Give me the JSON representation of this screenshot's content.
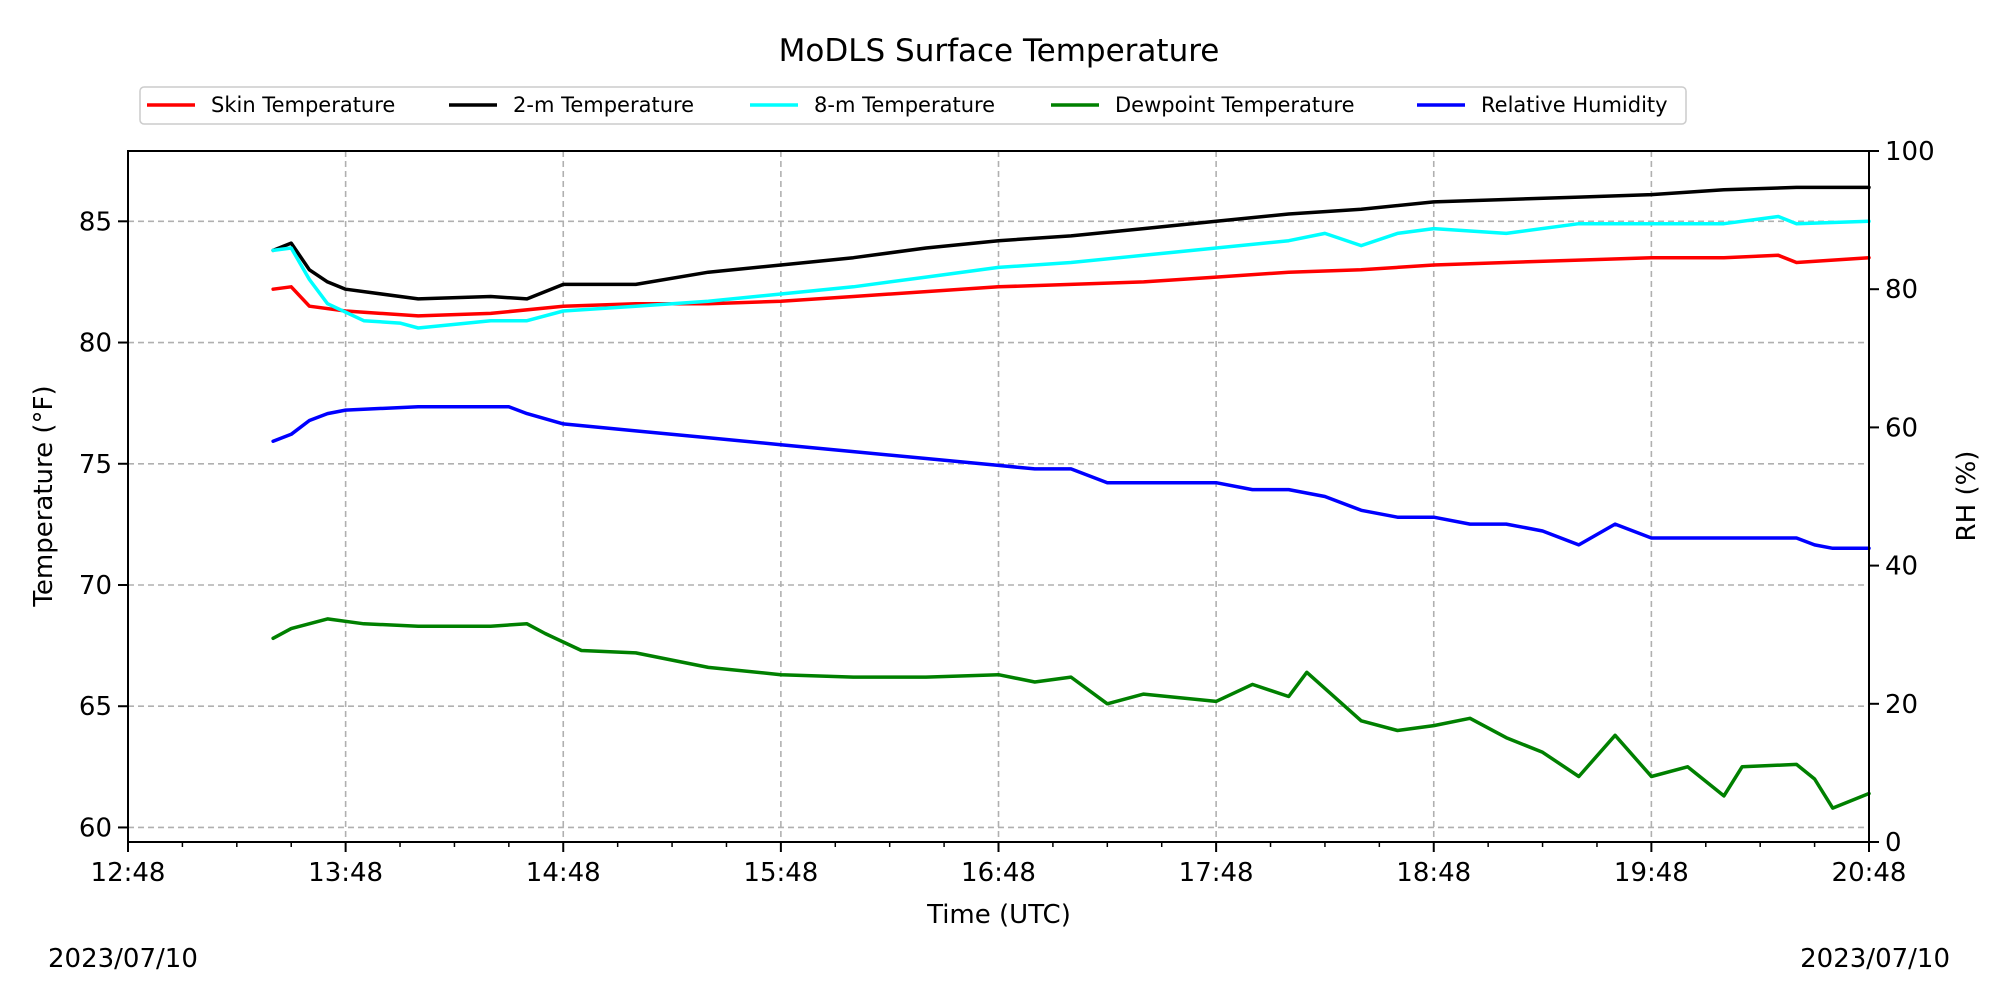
{
  "chart_data": {
    "type": "line",
    "title": "MoDLS Surface Temperature",
    "xlabel": "Time (UTC)",
    "ylabel": "Temperature ($^\\circ$F)",
    "ylabel_display": "Temperature (°F)",
    "y2label": "RH (%)",
    "xlim": [
      "12:48",
      "20:48"
    ],
    "xticks": [
      "12:48",
      "13:48",
      "14:48",
      "15:48",
      "16:48",
      "17:48",
      "18:48",
      "19:48",
      "20:48"
    ],
    "ylim": [
      59.4,
      87.9
    ],
    "yticks": [
      60,
      65,
      70,
      75,
      80,
      85
    ],
    "y2lim": [
      0,
      100
    ],
    "y2ticks": [
      0,
      20,
      40,
      60,
      80,
      100
    ],
    "grid": true,
    "legend_placement": "top",
    "series": [
      {
        "name": "Skin Temperature",
        "axis": "left",
        "color": "#ff0000",
        "x": [
          "13:28",
          "13:33",
          "13:38",
          "13:48",
          "14:08",
          "14:28",
          "14:48",
          "15:08",
          "15:28",
          "15:48",
          "16:08",
          "16:28",
          "16:48",
          "17:08",
          "17:28",
          "17:48",
          "18:08",
          "18:28",
          "18:48",
          "19:08",
          "19:28",
          "19:48",
          "20:08",
          "20:23",
          "20:28",
          "20:48"
        ],
        "y": [
          82.2,
          82.3,
          81.5,
          81.3,
          81.1,
          81.2,
          81.5,
          81.6,
          81.6,
          81.7,
          81.9,
          82.1,
          82.3,
          82.4,
          82.5,
          82.7,
          82.9,
          83.0,
          83.2,
          83.3,
          83.4,
          83.5,
          83.5,
          83.6,
          83.3,
          83.5
        ]
      },
      {
        "name": "2-m Temperature",
        "axis": "left",
        "color": "#000000",
        "x": [
          "13:28",
          "13:33",
          "13:38",
          "13:43",
          "13:48",
          "14:08",
          "14:28",
          "14:38",
          "14:48",
          "15:08",
          "15:28",
          "15:48",
          "16:08",
          "16:28",
          "16:48",
          "17:08",
          "17:28",
          "17:48",
          "18:08",
          "18:28",
          "18:48",
          "19:08",
          "19:28",
          "19:48",
          "20:08",
          "20:28",
          "20:48"
        ],
        "y": [
          83.8,
          84.1,
          83.0,
          82.5,
          82.2,
          81.8,
          81.9,
          81.8,
          82.4,
          82.4,
          82.9,
          83.2,
          83.5,
          83.9,
          84.2,
          84.4,
          84.7,
          85.0,
          85.3,
          85.5,
          85.8,
          85.9,
          86.0,
          86.1,
          86.3,
          86.4,
          86.4
        ]
      },
      {
        "name": "8-m Temperature",
        "axis": "left",
        "color": "#00ffff",
        "x": [
          "13:28",
          "13:33",
          "13:38",
          "13:43",
          "13:53",
          "14:03",
          "14:08",
          "14:28",
          "14:38",
          "14:48",
          "15:08",
          "15:28",
          "15:48",
          "16:08",
          "16:28",
          "16:48",
          "17:08",
          "17:28",
          "17:48",
          "18:08",
          "18:18",
          "18:28",
          "18:38",
          "18:48",
          "19:08",
          "19:28",
          "19:48",
          "20:08",
          "20:23",
          "20:28",
          "20:48"
        ],
        "y": [
          83.8,
          83.9,
          82.6,
          81.6,
          80.9,
          80.8,
          80.6,
          80.9,
          80.9,
          81.3,
          81.5,
          81.7,
          82.0,
          82.3,
          82.7,
          83.1,
          83.3,
          83.6,
          83.9,
          84.2,
          84.5,
          84.0,
          84.5,
          84.7,
          84.5,
          84.9,
          84.9,
          84.9,
          85.2,
          84.9,
          85.0
        ]
      },
      {
        "name": "Dewpoint Temperature",
        "axis": "left",
        "color": "#008000",
        "x": [
          "13:28",
          "13:33",
          "13:43",
          "13:53",
          "14:08",
          "14:28",
          "14:38",
          "14:43",
          "14:53",
          "15:08",
          "15:28",
          "15:48",
          "16:08",
          "16:28",
          "16:48",
          "16:58",
          "17:08",
          "17:18",
          "17:28",
          "17:48",
          "17:58",
          "18:08",
          "18:13",
          "18:28",
          "18:38",
          "18:48",
          "18:58",
          "19:08",
          "19:18",
          "19:28",
          "19:38",
          "19:48",
          "19:58",
          "20:08",
          "20:13",
          "20:28",
          "20:33",
          "20:38",
          "20:48"
        ],
        "y": [
          67.8,
          68.2,
          68.6,
          68.4,
          68.3,
          68.3,
          68.4,
          68.0,
          67.3,
          67.2,
          66.6,
          66.3,
          66.2,
          66.2,
          66.3,
          66.0,
          66.2,
          65.1,
          65.5,
          65.2,
          65.9,
          65.4,
          66.4,
          64.4,
          64.0,
          64.2,
          64.5,
          63.7,
          63.1,
          62.1,
          63.8,
          62.1,
          62.5,
          61.3,
          62.5,
          62.6,
          62.0,
          60.8,
          61.4
        ]
      },
      {
        "name": "Relative Humidity",
        "axis": "right",
        "color": "#0000ff",
        "x": [
          "13:28",
          "13:33",
          "13:38",
          "13:43",
          "13:48",
          "14:08",
          "14:28",
          "14:33",
          "14:38",
          "14:48",
          "15:08",
          "15:28",
          "15:48",
          "16:08",
          "16:28",
          "16:48",
          "16:58",
          "17:08",
          "17:18",
          "17:28",
          "17:48",
          "17:58",
          "18:08",
          "18:18",
          "18:28",
          "18:38",
          "18:48",
          "18:58",
          "19:08",
          "19:18",
          "19:28",
          "19:38",
          "19:48",
          "19:58",
          "20:08",
          "20:18",
          "20:28",
          "20:33",
          "20:38",
          "20:48"
        ],
        "y": [
          58,
          59,
          61,
          62,
          62.5,
          63,
          63,
          63,
          62,
          60.5,
          59.5,
          58.5,
          57.5,
          56.5,
          55.5,
          54.5,
          54,
          54,
          52,
          52,
          52,
          51,
          51,
          50,
          48,
          47,
          47,
          46,
          46,
          45,
          43,
          46,
          44,
          44,
          44,
          44,
          44,
          43,
          42.5,
          42.5
        ]
      }
    ]
  },
  "footer": {
    "date_left": "2023/07/10",
    "date_right": "2023/07/10"
  }
}
